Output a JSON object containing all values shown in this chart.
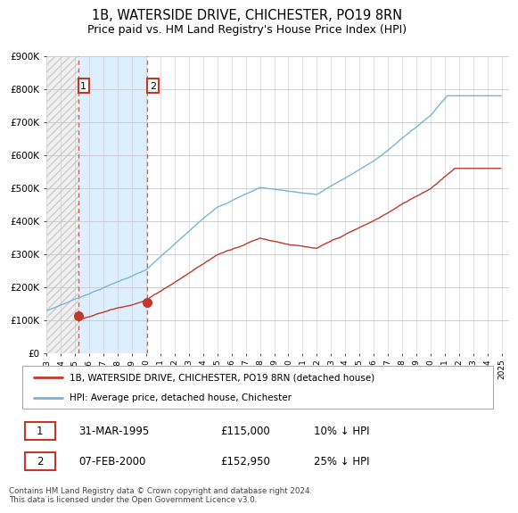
{
  "title": "1B, WATERSIDE DRIVE, CHICHESTER, PO19 8RN",
  "subtitle": "Price paid vs. HM Land Registry's House Price Index (HPI)",
  "ylabel_ticks": [
    "£0",
    "£100K",
    "£200K",
    "£300K",
    "£400K",
    "£500K",
    "£600K",
    "£700K",
    "£800K",
    "£900K"
  ],
  "ytick_values": [
    0,
    100000,
    200000,
    300000,
    400000,
    500000,
    600000,
    700000,
    800000,
    900000
  ],
  "ylim": [
    0,
    900000
  ],
  "xlim_start": 1993.0,
  "xlim_end": 2025.5,
  "hpi_color": "#7ab4d8",
  "price_color": "#c0392b",
  "hatch_bg_color": "#e8e8e8",
  "between_fill_color": "#ddeeff",
  "transaction1_x": 1995.25,
  "transaction1_y": 115000,
  "transaction2_x": 2000.1,
  "transaction2_y": 152950,
  "legend_line1": "1B, WATERSIDE DRIVE, CHICHESTER, PO19 8RN (detached house)",
  "legend_line2": "HPI: Average price, detached house, Chichester",
  "footnote": "Contains HM Land Registry data © Crown copyright and database right 2024.\nThis data is licensed under the Open Government Licence v3.0.",
  "grid_color": "#c8c8c8",
  "title_fontsize": 10.5,
  "subtitle_fontsize": 9,
  "tick_fontsize": 7.5,
  "table_row1": [
    "1",
    "31-MAR-1995",
    "£115,000",
    "10% ↓ HPI"
  ],
  "table_row2": [
    "2",
    "07-FEB-2000",
    "£152,950",
    "25% ↓ HPI"
  ]
}
